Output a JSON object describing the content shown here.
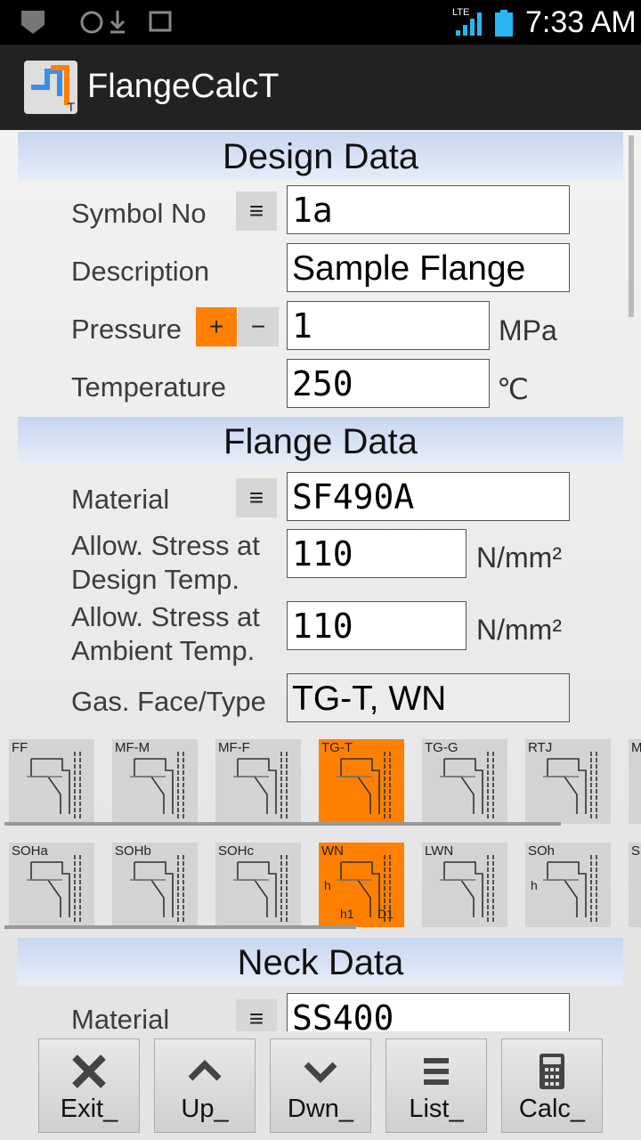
{
  "status_bar": {
    "network": "LTE",
    "time": "7:33 AM"
  },
  "app_bar": {
    "title": "FlangeCalcT",
    "icon_badge": "T"
  },
  "design_data": {
    "header": "Design Data",
    "symbol_no": {
      "label": "Symbol No",
      "value": "1a"
    },
    "description": {
      "label": "Description",
      "value": "Sample Flange"
    },
    "pressure": {
      "label": "Pressure",
      "plus": "+",
      "minus": "−",
      "value": "1",
      "unit": "MPa"
    },
    "temperature": {
      "label": "Temperature",
      "value": "250",
      "unit": "℃"
    }
  },
  "flange_data": {
    "header": "Flange Data",
    "material": {
      "label": "Material",
      "value": "SF490A"
    },
    "allow_design": {
      "label_lines": [
        "Allow. Stress at",
        "Design Temp."
      ],
      "value": "110",
      "unit": "N/mm²"
    },
    "allow_ambient": {
      "label_lines": [
        "Allow. Stress at",
        "Ambient Temp."
      ],
      "value": "110",
      "unit": "N/mm²"
    },
    "gasket": {
      "label": "Gas. Face/Type",
      "value": "TG-T, WN"
    },
    "face_options": [
      {
        "label": "FF"
      },
      {
        "label": "MF-M"
      },
      {
        "label": "MF-F"
      },
      {
        "label": "TG-T",
        "selected": true
      },
      {
        "label": "TG-G"
      },
      {
        "label": "RTJ"
      },
      {
        "label": "M"
      }
    ],
    "type_options": [
      {
        "label": "SOHa"
      },
      {
        "label": "SOHb"
      },
      {
        "label": "SOHc"
      },
      {
        "label": "WN",
        "selected": true,
        "dimension_labels": [
          "h",
          "h1",
          "D1"
        ]
      },
      {
        "label": "LWN"
      },
      {
        "label": "SOh",
        "dimension_labels": [
          "h"
        ]
      },
      {
        "label": "S"
      }
    ]
  },
  "neck_data": {
    "header": "Neck Data",
    "material": {
      "label": "Material",
      "value": "SS400"
    }
  },
  "toolbar": [
    "Exit_",
    "Up_",
    "Dwn_",
    "List_",
    "Calc_"
  ]
}
